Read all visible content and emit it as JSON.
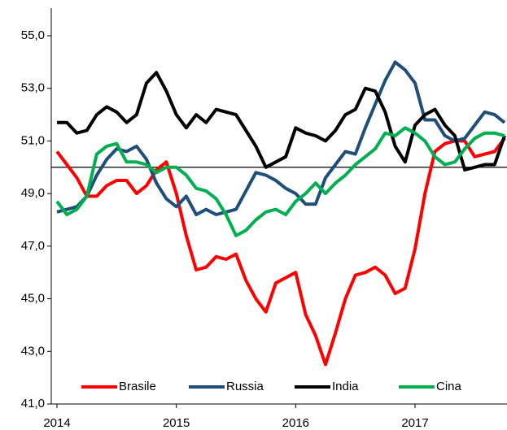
{
  "chart_data": {
    "type": "line",
    "categories": [
      "2014",
      null,
      null,
      null,
      null,
      null,
      null,
      null,
      null,
      null,
      null,
      null,
      "2015",
      null,
      null,
      null,
      null,
      null,
      null,
      null,
      null,
      null,
      null,
      null,
      "2016",
      null,
      null,
      null,
      null,
      null,
      null,
      null,
      null,
      null,
      null,
      null,
      "2017",
      null,
      null,
      null,
      null,
      null,
      null,
      null,
      null,
      null
    ],
    "series": [
      {
        "name": "Brasile",
        "color": "#ff0000",
        "values": [
          50.6,
          50.1,
          49.6,
          48.9,
          48.9,
          49.3,
          49.5,
          49.5,
          49.0,
          49.3,
          49.9,
          50.2,
          49.0,
          47.4,
          46.1,
          46.2,
          46.6,
          46.5,
          46.7,
          45.7,
          45.0,
          44.5,
          45.6,
          45.8,
          46.0,
          44.4,
          43.6,
          42.5,
          43.7,
          45.0,
          45.9,
          46.0,
          46.2,
          45.9,
          45.2,
          45.4,
          46.9,
          49.0,
          50.6,
          50.9,
          51.0,
          51.0,
          50.4,
          50.5,
          50.6,
          51.1
        ]
      },
      {
        "name": "Russia",
        "color": "#1f4e79",
        "values": [
          48.3,
          48.4,
          48.5,
          48.9,
          49.7,
          50.3,
          50.7,
          50.6,
          50.8,
          50.3,
          49.4,
          48.8,
          48.5,
          48.9,
          48.2,
          48.4,
          48.2,
          48.3,
          48.4,
          49.1,
          49.8,
          49.7,
          49.5,
          49.2,
          49.0,
          48.6,
          48.6,
          49.6,
          50.1,
          50.6,
          50.5,
          51.5,
          52.4,
          53.3,
          54.0,
          53.7,
          53.2,
          51.8,
          51.8,
          51.2,
          51.0,
          51.1,
          51.6,
          52.1,
          52.0,
          51.7
        ]
      },
      {
        "name": "India",
        "color": "#000000",
        "values": [
          51.7,
          51.7,
          51.3,
          51.4,
          52.0,
          52.3,
          52.1,
          51.7,
          52.0,
          53.2,
          53.6,
          52.9,
          52.0,
          51.5,
          52.0,
          51.7,
          52.2,
          52.1,
          52.0,
          51.4,
          50.8,
          50.0,
          50.2,
          50.4,
          51.5,
          51.3,
          51.2,
          51.0,
          51.4,
          52.0,
          52.2,
          53.0,
          52.9,
          52.1,
          50.8,
          50.2,
          51.6,
          52.0,
          52.2,
          51.6,
          51.2,
          49.9,
          50.0,
          50.1,
          50.1,
          51.2
        ]
      },
      {
        "name": "Cina",
        "color": "#00b050",
        "values": [
          48.7,
          48.2,
          48.4,
          48.9,
          50.5,
          50.8,
          50.9,
          50.2,
          50.2,
          50.1,
          49.8,
          50.0,
          50.0,
          49.7,
          49.2,
          49.1,
          48.8,
          48.2,
          47.4,
          47.6,
          48.0,
          48.3,
          48.4,
          48.2,
          48.7,
          49.0,
          49.4,
          49.0,
          49.4,
          49.7,
          50.1,
          50.4,
          50.7,
          51.3,
          51.2,
          51.5,
          51.3,
          51.0,
          50.4,
          50.1,
          50.2,
          50.7,
          51.1,
          51.3,
          51.3,
          51.2
        ]
      }
    ],
    "ylim": [
      41,
      55
    ],
    "yticks": [
      {
        "value": 41,
        "label": "41,0"
      },
      {
        "value": 43,
        "label": "43,0"
      },
      {
        "value": 45,
        "label": "45,0"
      },
      {
        "value": 47,
        "label": "47,0"
      },
      {
        "value": 49,
        "label": "49,0"
      },
      {
        "value": 51,
        "label": "51,0"
      },
      {
        "value": 53,
        "label": "53,0"
      },
      {
        "value": 55,
        "label": "55,0"
      }
    ],
    "hline": 50,
    "legend": "bottom"
  }
}
